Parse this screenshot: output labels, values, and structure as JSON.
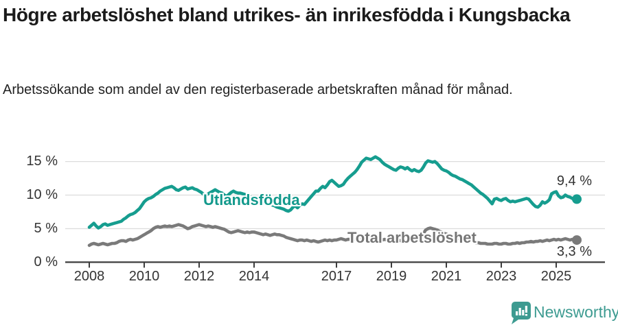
{
  "header": {
    "title": "Högre arbetslöshet bland utrikes- än inrikesfödda i Kungsbacka",
    "subtitle": "Arbetssökande som andel av den registerbaserade arbetskraften månad för månad."
  },
  "chart_data": {
    "type": "line",
    "unit": "%",
    "x_start_year": 2008,
    "points_per_year": 12,
    "x_ticks": [
      2008,
      2010,
      2012,
      2014,
      2017,
      2019,
      2021,
      2023,
      2025
    ],
    "y_ticks": [
      0,
      5,
      10,
      15
    ],
    "y_tick_labels": [
      "0 %",
      "5 %",
      "10 %",
      "15 %"
    ],
    "ylim": [
      0,
      16.5
    ],
    "grid": "horizontal",
    "legend_position": "inline-labels",
    "series": [
      {
        "name": "Utlandsfödda",
        "color": "#169d8f",
        "end_label": "9,4 %",
        "end_value": 9.4,
        "values": [
          5.2,
          5.5,
          5.8,
          5.4,
          5.1,
          5.3,
          5.6,
          5.7,
          5.5,
          5.6,
          5.7,
          5.8,
          5.9,
          6.0,
          6.1,
          6.4,
          6.6,
          6.9,
          7.1,
          7.2,
          7.4,
          7.7,
          8.0,
          8.5,
          9.0,
          9.3,
          9.5,
          9.6,
          9.8,
          10.1,
          10.3,
          10.6,
          10.8,
          11.0,
          11.1,
          11.2,
          11.3,
          11.1,
          10.8,
          10.7,
          10.9,
          11.1,
          11.2,
          10.9,
          11.0,
          11.1,
          10.9,
          10.8,
          10.6,
          10.4,
          10.1,
          10.0,
          10.2,
          10.4,
          10.6,
          10.8,
          10.6,
          10.4,
          10.3,
          10.0,
          9.8,
          10.1,
          10.4,
          10.6,
          10.4,
          10.3,
          10.3,
          10.2,
          10.1,
          10.0,
          9.8,
          9.6,
          9.4,
          9.3,
          9.1,
          9.0,
          8.9,
          8.8,
          8.7,
          8.6,
          8.5,
          8.4,
          8.2,
          8.1,
          8.0,
          7.9,
          7.7,
          7.6,
          7.8,
          8.2,
          8.4,
          8.1,
          8.5,
          8.7,
          8.6,
          9.0,
          9.4,
          9.8,
          10.2,
          10.6,
          10.6,
          11.0,
          11.3,
          11.1,
          11.5,
          12.0,
          12.2,
          11.9,
          11.6,
          11.3,
          11.4,
          11.6,
          12.1,
          12.5,
          12.8,
          13.1,
          13.4,
          13.8,
          14.3,
          14.9,
          15.2,
          15.5,
          15.4,
          15.3,
          15.5,
          15.7,
          15.5,
          15.3,
          14.9,
          14.6,
          14.4,
          14.2,
          14.0,
          13.8,
          13.7,
          14.0,
          14.2,
          14.1,
          13.9,
          14.1,
          13.8,
          13.6,
          13.8,
          13.6,
          13.5,
          13.7,
          14.2,
          14.8,
          15.1,
          15.0,
          14.9,
          15.0,
          14.7,
          14.3,
          13.9,
          13.7,
          13.6,
          13.4,
          13.1,
          12.9,
          12.8,
          12.6,
          12.4,
          12.3,
          12.1,
          11.9,
          11.7,
          11.5,
          11.2,
          10.9,
          10.6,
          10.3,
          10.1,
          9.8,
          9.5,
          9.1,
          8.7,
          9.4,
          9.5,
          9.3,
          9.2,
          9.4,
          9.5,
          9.2,
          9.0,
          9.1,
          9.0,
          9.1,
          9.2,
          9.3,
          9.4,
          9.5,
          9.4,
          9.0,
          8.6,
          8.3,
          8.2,
          8.5,
          9.0,
          8.8,
          9.0,
          9.3,
          10.2,
          10.4,
          10.5,
          9.9,
          9.6,
          9.7,
          10.0,
          9.8,
          9.7,
          9.5,
          9.4,
          9.4
        ]
      },
      {
        "name": "Total arbetslöshet",
        "color": "#7a7a7a",
        "end_label": "3,3 %",
        "end_value": 3.3,
        "values": [
          2.5,
          2.7,
          2.8,
          2.7,
          2.6,
          2.7,
          2.8,
          2.7,
          2.6,
          2.7,
          2.8,
          2.8,
          2.9,
          3.1,
          3.2,
          3.2,
          3.1,
          3.3,
          3.4,
          3.3,
          3.4,
          3.5,
          3.7,
          3.9,
          4.1,
          4.3,
          4.5,
          4.7,
          5.0,
          5.2,
          5.3,
          5.2,
          5.3,
          5.4,
          5.3,
          5.4,
          5.3,
          5.4,
          5.5,
          5.6,
          5.5,
          5.4,
          5.2,
          5.0,
          5.1,
          5.3,
          5.4,
          5.5,
          5.6,
          5.5,
          5.4,
          5.3,
          5.4,
          5.3,
          5.2,
          5.3,
          5.2,
          5.1,
          5.0,
          4.9,
          4.7,
          4.5,
          4.4,
          4.5,
          4.6,
          4.7,
          4.6,
          4.5,
          4.4,
          4.5,
          4.4,
          4.5,
          4.5,
          4.4,
          4.3,
          4.2,
          4.1,
          4.2,
          4.1,
          4.0,
          4.1,
          4.2,
          4.1,
          4.1,
          4.0,
          3.9,
          3.7,
          3.6,
          3.5,
          3.4,
          3.3,
          3.2,
          3.3,
          3.3,
          3.2,
          3.3,
          3.2,
          3.1,
          3.2,
          3.1,
          3.0,
          3.1,
          3.2,
          3.3,
          3.2,
          3.3,
          3.2,
          3.3,
          3.3,
          3.4,
          3.5,
          3.4,
          3.3,
          3.4,
          3.4,
          3.3,
          3.4,
          3.5,
          3.4,
          3.5,
          3.5,
          3.4,
          3.3,
          3.4,
          3.5,
          3.4,
          3.3,
          3.4,
          3.3,
          3.4,
          3.3,
          3.4,
          3.4,
          3.3,
          3.2,
          3.3,
          3.2,
          3.1,
          3.2,
          3.1,
          3.2,
          3.3,
          3.4,
          3.5,
          3.6,
          3.8,
          4.3,
          4.8,
          5.0,
          5.1,
          5.0,
          4.9,
          4.8,
          4.6,
          4.5,
          4.3,
          4.2,
          4.0,
          3.9,
          3.8,
          3.7,
          3.6,
          3.5,
          3.4,
          3.3,
          3.2,
          3.1,
          3.1,
          3.0,
          2.9,
          2.9,
          2.8,
          2.8,
          2.8,
          2.7,
          2.7,
          2.7,
          2.8,
          2.8,
          2.7,
          2.7,
          2.8,
          2.8,
          2.7,
          2.7,
          2.8,
          2.8,
          2.9,
          2.8,
          2.9,
          2.9,
          3.0,
          3.0,
          3.1,
          3.0,
          3.1,
          3.1,
          3.2,
          3.1,
          3.2,
          3.3,
          3.2,
          3.3,
          3.4,
          3.3,
          3.4,
          3.3,
          3.4,
          3.5,
          3.4,
          3.3,
          3.4,
          3.3,
          3.3
        ]
      }
    ]
  },
  "footer": {
    "brand": "Newsworthy",
    "brand_color": "#3d9b91"
  }
}
